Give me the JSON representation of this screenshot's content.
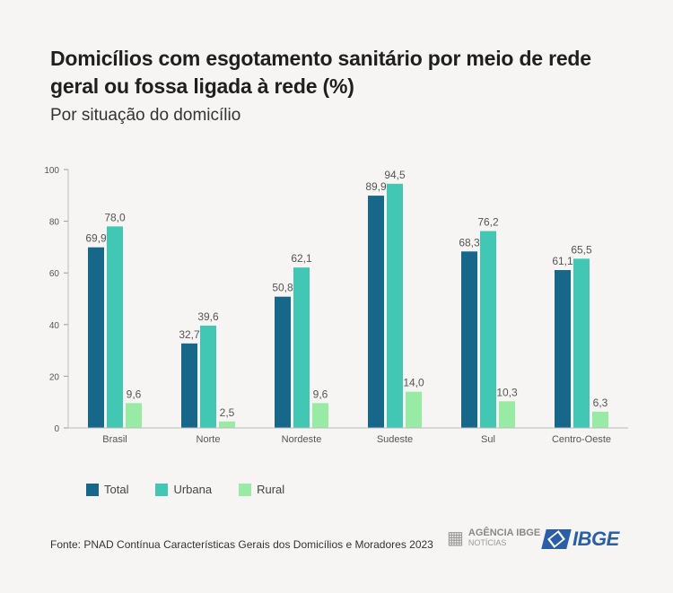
{
  "title": "Domicílios com esgotamento sanitário por meio de rede geral ou fossa ligada à rede (%)",
  "subtitle": "Por situação do domicílio",
  "source": "Fonte: PNAD Contínua Características Gerais dos Domicílios e Moradores 2023",
  "logos": {
    "agencia_line1": "AGÊNCIA IBGE",
    "agencia_line2": "NOTÍCIAS",
    "ibge": "IBGE"
  },
  "chart_data": {
    "type": "bar",
    "categories": [
      "Brasil",
      "Norte",
      "Nordeste",
      "Sudeste",
      "Sul",
      "Centro-Oeste"
    ],
    "series": [
      {
        "name": "Total",
        "color": "#16678a",
        "values": [
          69.9,
          32.7,
          50.8,
          89.9,
          68.3,
          61.1
        ],
        "labels": [
          "69,9",
          "32,7",
          "50,8",
          "89,9",
          "68,3",
          "61,1"
        ]
      },
      {
        "name": "Urbana",
        "color": "#42c7b4",
        "values": [
          78.0,
          39.6,
          62.1,
          94.5,
          76.2,
          65.5
        ],
        "labels": [
          "78,0",
          "39,6",
          "62,1",
          "94,5",
          "76,2",
          "65,5"
        ]
      },
      {
        "name": "Rural",
        "color": "#98eaa4",
        "values": [
          9.6,
          2.5,
          9.6,
          14.0,
          10.3,
          6.3
        ],
        "labels": [
          "9,6",
          "2,5",
          "9,6",
          "14,0",
          "10,3",
          "6,3"
        ]
      }
    ],
    "yticks": [
      0,
      20,
      40,
      60,
      80,
      100
    ],
    "ylim": [
      0,
      100
    ],
    "grid": false,
    "legend_position": "bottom-left"
  }
}
